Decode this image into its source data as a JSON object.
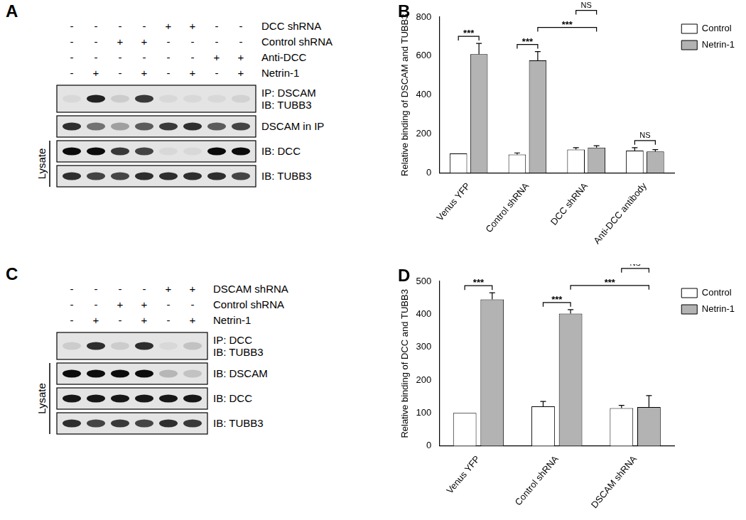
{
  "chart_data": [
    {
      "panel": "B",
      "type": "bar",
      "categories": [
        "Venus YFP",
        "Control shRNA",
        "DCC shRNA",
        "Anti-DCC antibody"
      ],
      "series": [
        {
          "name": "Control",
          "color": "#ffffff",
          "values": [
            100,
            95,
            120,
            115
          ],
          "errors": [
            0,
            8,
            10,
            15
          ]
        },
        {
          "name": "Netrin-1",
          "color": "#b3b3b3",
          "values": [
            610,
            578,
            130,
            110
          ],
          "errors": [
            55,
            45,
            10,
            10
          ]
        }
      ],
      "y_label": "Relative binding of DSCAM and TUBB3",
      "ylim": [
        0,
        800
      ],
      "yticks": [
        0,
        200,
        400,
        600,
        800
      ],
      "grid": false,
      "legend": "upper right",
      "annotations": [
        {
          "text": "***",
          "from": [
            0,
            0
          ],
          "to": [
            0,
            1
          ]
        },
        {
          "text": "***",
          "from": [
            1,
            0
          ],
          "to": [
            1,
            1
          ]
        },
        {
          "text": "***",
          "from": [
            1,
            1
          ],
          "to": [
            2,
            1
          ]
        },
        {
          "text": "NS",
          "from": [
            2,
            0
          ],
          "to": [
            2,
            1
          ]
        },
        {
          "text": "NS",
          "from": [
            3,
            0
          ],
          "to": [
            3,
            1
          ]
        }
      ]
    },
    {
      "panel": "D",
      "type": "bar",
      "categories": [
        "Venus YFP",
        "Control shRNA",
        "DSCAM shRNA"
      ],
      "series": [
        {
          "name": "Control",
          "color": "#ffffff",
          "values": [
            100,
            120,
            115
          ],
          "errors": [
            0,
            15,
            8
          ]
        },
        {
          "name": "Netrin-1",
          "color": "#b3b3b3",
          "values": [
            445,
            402,
            118
          ],
          "errors": [
            20,
            12,
            35
          ]
        }
      ],
      "y_label": "Relative binding of DCC and TUBB3",
      "ylim": [
        0,
        500
      ],
      "yticks": [
        0,
        100,
        200,
        300,
        400,
        500
      ],
      "grid": false,
      "legend": "upper right",
      "annotations": [
        {
          "text": "***",
          "from": [
            0,
            0
          ],
          "to": [
            0,
            1
          ]
        },
        {
          "text": "***",
          "from": [
            1,
            0
          ],
          "to": [
            1,
            1
          ]
        },
        {
          "text": "***",
          "from": [
            1,
            1
          ],
          "to": [
            2,
            1
          ]
        },
        {
          "text": "NS",
          "from": [
            2,
            0
          ],
          "to": [
            2,
            1
          ]
        }
      ]
    }
  ],
  "blots": [
    {
      "panel": "A",
      "conditions": [
        {
          "label": "DCC shRNA",
          "signs": [
            "-",
            "-",
            "-",
            "-",
            "+",
            "+",
            "-",
            "-"
          ]
        },
        {
          "label": "Control shRNA",
          "signs": [
            "-",
            "-",
            "+",
            "+",
            "-",
            "-",
            "-",
            "-"
          ]
        },
        {
          "label": "Anti-DCC",
          "signs": [
            "-",
            "-",
            "-",
            "-",
            "-",
            "-",
            "+",
            "+"
          ]
        },
        {
          "label": "Netrin-1",
          "signs": [
            "-",
            "+",
            "-",
            "+",
            "-",
            "+",
            "-",
            "+"
          ]
        }
      ],
      "strips": [
        {
          "labels": [
            "IP: DSCAM",
            "IB: TUBB3"
          ],
          "intensity": [
            0.05,
            0.85,
            0.1,
            0.75,
            0.05,
            0.05,
            0.05,
            0.08
          ]
        },
        {
          "labels": [
            "DSCAM in IP"
          ],
          "intensity": [
            0.8,
            0.5,
            0.3,
            0.6,
            0.75,
            0.8,
            0.6,
            0.7
          ]
        },
        {
          "labels": [
            "IB: DCC"
          ],
          "intensity": [
            0.95,
            0.95,
            0.75,
            0.7,
            0.05,
            0.05,
            0.95,
            0.95
          ]
        },
        {
          "labels": [
            "IB: TUBB3"
          ],
          "intensity": [
            0.8,
            0.7,
            0.7,
            0.8,
            0.8,
            0.8,
            0.8,
            0.7
          ]
        }
      ],
      "groups": [
        {
          "label": "Lysate",
          "strips": [
            2,
            3
          ]
        }
      ]
    },
    {
      "panel": "C",
      "conditions": [
        {
          "label": "DSCAM shRNA",
          "signs": [
            "-",
            "-",
            "-",
            "-",
            "+",
            "+"
          ]
        },
        {
          "label": "Control shRNA",
          "signs": [
            "-",
            "-",
            "+",
            "+",
            "-",
            "-"
          ]
        },
        {
          "label": "Netrin-1",
          "signs": [
            "-",
            "+",
            "-",
            "+",
            "-",
            "+"
          ]
        }
      ],
      "strips": [
        {
          "labels": [
            "IP: DCC",
            "IB: TUBB3"
          ],
          "intensity": [
            0.1,
            0.8,
            0.1,
            0.8,
            0.05,
            0.15
          ]
        },
        {
          "labels": [
            "IB: DSCAM"
          ],
          "intensity": [
            0.95,
            0.95,
            0.95,
            0.95,
            0.2,
            0.15
          ]
        },
        {
          "labels": [
            "IB: DCC"
          ],
          "intensity": [
            0.9,
            0.9,
            0.9,
            0.9,
            0.9,
            0.9
          ]
        },
        {
          "labels": [
            "IB: TUBB3"
          ],
          "intensity": [
            0.8,
            0.7,
            0.75,
            0.7,
            0.8,
            0.75
          ]
        }
      ],
      "groups": [
        {
          "label": "Lysate",
          "strips": [
            1,
            2,
            3
          ]
        }
      ]
    }
  ]
}
